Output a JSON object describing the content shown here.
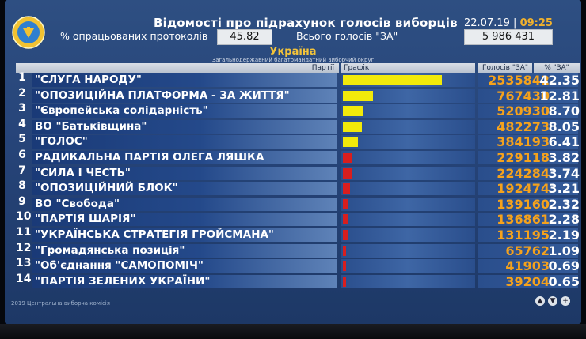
{
  "header": {
    "title": "Відомості про підрахунок голосів виборців",
    "date": "22.07.19",
    "separator": "|",
    "time": "09:25",
    "processed_label": "% опрацьованих протоколів",
    "processed_value": "45.82",
    "total_votes_label": "Всього голосів \"ЗА\"",
    "total_votes_value": "5 986 431"
  },
  "region": {
    "title": "Україна",
    "subtitle": "Загальнодержавний багатомандатний виборчий округ"
  },
  "columns": {
    "party": "Партії",
    "graph": "Графік",
    "votes": "Голосів \"ЗА\"",
    "percent": "% \"ЗА\""
  },
  "colors": {
    "bar_top": "#f2ea0a",
    "bar_small": "#d81e1e",
    "votes_text": "#f5a21c"
  },
  "rows": [
    {
      "n": "1",
      "party": "\"СЛУГА НАРОДУ\"",
      "votes": "2535842",
      "percent": "42.35",
      "share": 42.35
    },
    {
      "n": "2",
      "party": "\"ОПОЗИЦІЙНА ПЛАТФОРМА - ЗА ЖИТТЯ\"",
      "votes": "767430",
      "percent": "12.81",
      "share": 12.81
    },
    {
      "n": "3",
      "party": "\"Європейська солідарність\"",
      "votes": "520930",
      "percent": "8.70",
      "share": 8.7
    },
    {
      "n": "4",
      "party": "ВО \"Батьківщина\"",
      "votes": "482273",
      "percent": "8.05",
      "share": 8.05
    },
    {
      "n": "5",
      "party": "\"ГОЛОС\"",
      "votes": "384193",
      "percent": "6.41",
      "share": 6.41
    },
    {
      "n": "6",
      "party": "РАДИКАЛЬНА ПАРТІЯ ОЛЕГА ЛЯШКА",
      "votes": "229118",
      "percent": "3.82",
      "share": 3.82
    },
    {
      "n": "7",
      "party": "\"СИЛА І ЧЕСТЬ\"",
      "votes": "224284",
      "percent": "3.74",
      "share": 3.74
    },
    {
      "n": "8",
      "party": "\"ОПОЗИЦІЙНИЙ БЛОК\"",
      "votes": "192474",
      "percent": "3.21",
      "share": 3.21
    },
    {
      "n": "9",
      "party": "ВО \"Свобода\"",
      "votes": "139160",
      "percent": "2.32",
      "share": 2.32
    },
    {
      "n": "10",
      "party": "\"ПАРТІЯ ШАРІЯ\"",
      "votes": "136861",
      "percent": "2.28",
      "share": 2.28
    },
    {
      "n": "11",
      "party": "\"УКРАЇНСЬКА СТРАТЕГІЯ ГРОЙСМАНА\"",
      "votes": "131195",
      "percent": "2.19",
      "share": 2.19
    },
    {
      "n": "12",
      "party": "\"Громадянська позиція\"",
      "votes": "65762",
      "percent": "1.09",
      "share": 1.09
    },
    {
      "n": "13",
      "party": "\"Об'єднання \"САМОПОМІЧ\"",
      "votes": "41903",
      "percent": "0.69",
      "share": 0.69
    },
    {
      "n": "14",
      "party": "\"ПАРТІЯ ЗЕЛЕНИХ УКРАЇНИ\"",
      "votes": "39204",
      "percent": "0.65",
      "share": 0.65
    }
  ],
  "footer": "2019 Центральна виборча комісія",
  "nav_icons": [
    "arrow-up-icon",
    "arrow-down-icon",
    "plus-icon"
  ]
}
